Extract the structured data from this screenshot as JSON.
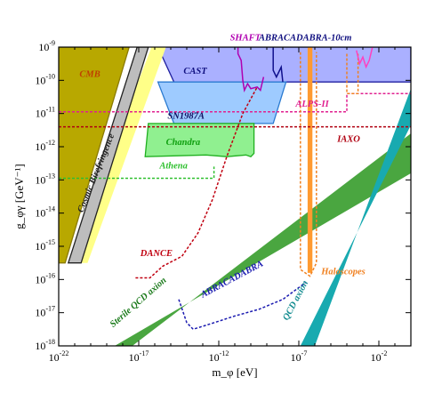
{
  "chart_data": {
    "type": "area",
    "title": "",
    "xlabel": "m_φ [eV]",
    "ylabel": "g_φγ [GeV⁻¹]",
    "x_scale": "log10",
    "y_scale": "log10",
    "xlim_log10": [
      -22,
      0
    ],
    "ylim_log10": [
      -18,
      -9
    ],
    "x_ticks": [
      {
        "exp": -22,
        "label": "10",
        "sup": "-22"
      },
      {
        "exp": -17,
        "label": "10",
        "sup": "-17"
      },
      {
        "exp": -12,
        "label": "10",
        "sup": "-12"
      },
      {
        "exp": -7,
        "label": "10",
        "sup": "-7"
      },
      {
        "exp": -2,
        "label": "10",
        "sup": "-2"
      }
    ],
    "y_ticks": [
      {
        "exp": -9,
        "label": "10",
        "sup": "-9"
      },
      {
        "exp": -10,
        "label": "10",
        "sup": "-10"
      },
      {
        "exp": -11,
        "label": "10",
        "sup": "-11"
      },
      {
        "exp": -12,
        "label": "10",
        "sup": "-12"
      },
      {
        "exp": -13,
        "label": "10",
        "sup": "-13"
      },
      {
        "exp": -14,
        "label": "10",
        "sup": "-14"
      },
      {
        "exp": -15,
        "label": "10",
        "sup": "-15"
      },
      {
        "exp": -16,
        "label": "10",
        "sup": "-16"
      },
      {
        "exp": -17,
        "label": "10",
        "sup": "-17"
      },
      {
        "exp": -18,
        "label": "10",
        "sup": "-18"
      }
    ],
    "regions": [
      {
        "name": "CAST",
        "fill": "#aab0ff",
        "stroke": "#2020a0",
        "points": [
          [
            -15.8,
            -9
          ],
          [
            0,
            -9
          ],
          [
            0,
            -10.05
          ],
          [
            -14.8,
            -10.05
          ]
        ]
      },
      {
        "name": "SN1987A",
        "fill": "#9ecbff",
        "stroke": "#2a7ad0",
        "points": [
          [
            -15.8,
            -10.05
          ],
          [
            -7.8,
            -10.05
          ],
          [
            -8.6,
            -11.3
          ],
          [
            -14.8,
            -11.3
          ]
        ]
      },
      {
        "name": "Chandra",
        "fill": "#90f090",
        "stroke": "#20b020",
        "points": [
          [
            -16.4,
            -11.3
          ],
          [
            -9.8,
            -11.3
          ],
          [
            -9.8,
            -12.2
          ],
          [
            -10.0,
            -12.3
          ],
          [
            -10.3,
            -12.25
          ],
          [
            -11.5,
            -12.3
          ],
          [
            -12.8,
            -12.25
          ],
          [
            -16.6,
            -12.3
          ]
        ]
      },
      {
        "name": "yellow-band",
        "fill": "#ffff88",
        "stroke": "none",
        "points": [
          [
            -15.3,
            -9
          ],
          [
            -16.2,
            -9
          ],
          [
            -21.4,
            -15.5
          ],
          [
            -20.2,
            -15.5
          ]
        ]
      },
      {
        "name": "Cosmic Birefringence",
        "fill": "#bdbdbd",
        "stroke": "#222222",
        "points": [
          [
            -16.4,
            -9
          ],
          [
            -17.1,
            -9
          ],
          [
            -21.4,
            -15.5
          ],
          [
            -20.6,
            -15.5
          ]
        ]
      },
      {
        "name": "CMB",
        "fill": "#b8a800",
        "stroke": "#8a7a00",
        "points": [
          [
            -22,
            -9
          ],
          [
            -17.6,
            -9
          ],
          [
            -21.6,
            -15.5
          ],
          [
            -22,
            -15.5
          ]
        ]
      },
      {
        "name": "Sterile QCD axion",
        "fill": "#4aa640",
        "stroke": "none",
        "points": [
          [
            -18.5,
            -18
          ],
          [
            -17.4,
            -18
          ],
          [
            0,
            -11.6
          ],
          [
            0,
            -12.8
          ]
        ]
      },
      {
        "name": "QCD axion",
        "fill": "#18aab0",
        "stroke": "none",
        "points": [
          [
            -6.9,
            -18
          ],
          [
            -6.0,
            -18
          ],
          [
            0,
            -10.25
          ],
          [
            0,
            -11.35
          ]
        ]
      },
      {
        "name": "Haloscopes-column",
        "fill": "#ff9a30",
        "stroke": "none",
        "points": [
          [
            -6.45,
            -9
          ],
          [
            -6.15,
            -9
          ],
          [
            -6.15,
            -15.8
          ],
          [
            -6.45,
            -15.8
          ]
        ]
      }
    ],
    "lines": [
      {
        "name": "SHAFT",
        "color": "#b000b0",
        "dash": "",
        "points": [
          [
            -10.8,
            -9
          ],
          [
            -10.8,
            -9.2
          ],
          [
            -10.6,
            -9.4
          ],
          [
            -10.5,
            -10.0
          ],
          [
            -10.4,
            -10.3
          ],
          [
            -10.2,
            -10.1
          ],
          [
            -10.0,
            -10.25
          ],
          [
            -9.6,
            -10.2
          ],
          [
            -9.4,
            -10.3
          ],
          [
            -9.2,
            -9.9
          ]
        ]
      },
      {
        "name": "ABRACADABRA-10cm",
        "color": "#10108c",
        "dash": "",
        "points": [
          [
            -8.6,
            -9
          ],
          [
            -8.6,
            -9.7
          ],
          [
            -8.4,
            -9.9
          ],
          [
            -8.1,
            -9.6
          ],
          [
            -8.0,
            -10.05
          ]
        ]
      },
      {
        "name": "IAXO",
        "color": "#b00010",
        "dash": "3,2",
        "points": [
          [
            -22,
            -11.4
          ],
          [
            0,
            -11.4
          ]
        ]
      },
      {
        "name": "ALPS-II",
        "color": "#e02090",
        "dash": "3,2",
        "points": [
          [
            -22,
            -10.95
          ],
          [
            -4.0,
            -10.95
          ],
          [
            -4.0,
            -10.4
          ],
          [
            0,
            -10.4
          ]
        ]
      },
      {
        "name": "Athena",
        "color": "#30c030",
        "dash": "3,2",
        "points": [
          [
            -22,
            -12.95
          ],
          [
            -12.3,
            -12.95
          ],
          [
            -12.3,
            -12.6
          ]
        ]
      },
      {
        "name": "DANCE",
        "color": "#c00010",
        "dash": "3,2",
        "points": [
          [
            -17.2,
            -15.95
          ],
          [
            -16.3,
            -15.95
          ],
          [
            -15.5,
            -15.6
          ],
          [
            -14.3,
            -15.3
          ],
          [
            -13.3,
            -14.6
          ],
          [
            -12.4,
            -13.6
          ],
          [
            -11.5,
            -12.3
          ],
          [
            -10.5,
            -11.0
          ],
          [
            -9.6,
            -10.2
          ]
        ]
      },
      {
        "name": "ABRACADABRA",
        "color": "#1a1ab0",
        "dash": "3,2",
        "points": [
          [
            -14.5,
            -16.6
          ],
          [
            -14.0,
            -17.3
          ],
          [
            -13.6,
            -17.5
          ],
          [
            -12.6,
            -17.35
          ],
          [
            -11.0,
            -17.1
          ],
          [
            -9.5,
            -16.9
          ],
          [
            -8.0,
            -16.6
          ],
          [
            -6.6,
            -16.1
          ]
        ]
      },
      {
        "name": "Haloscopes",
        "color": "#f08020",
        "dash": "3,2",
        "points": [
          [
            -6.9,
            -9.15
          ],
          [
            -6.9,
            -15.7
          ],
          [
            -6.3,
            -15.9
          ],
          [
            -5.9,
            -15.5
          ],
          [
            -5.9,
            -9.15
          ]
        ]
      },
      {
        "name": "Haloscopes-high",
        "color": "#f08020",
        "dash": "3,2",
        "points": [
          [
            -4.0,
            -9.2
          ],
          [
            -4.0,
            -10.4
          ],
          [
            -3.3,
            -10.4
          ],
          [
            -3.3,
            -9.2
          ]
        ]
      },
      {
        "name": "ALPS-magenta-high",
        "color": "#ff40c0",
        "dash": "",
        "points": [
          [
            -3.4,
            -9.1
          ],
          [
            -3.2,
            -9.5
          ],
          [
            -3.0,
            -9.3
          ],
          [
            -2.8,
            -9.6
          ],
          [
            -2.6,
            -9.4
          ],
          [
            -2.4,
            -9.0
          ]
        ]
      }
    ],
    "annotations": [
      {
        "text": "CMB",
        "x": -20.7,
        "y": -9.9,
        "color": "#c04000",
        "rotate": 0
      },
      {
        "text": "CAST",
        "x": -14.2,
        "y": -9.8,
        "color": "#101080",
        "rotate": 0
      },
      {
        "text": "SHAFT",
        "x": -11.3,
        "y": -8.8,
        "color": "#b000b0",
        "rotate": 0
      },
      {
        "text": "ABRACADABRA-10cm",
        "x": -9.5,
        "y": -8.8,
        "color": "#101080",
        "rotate": 0
      },
      {
        "text": "ALPS-II",
        "x": -7.2,
        "y": -10.8,
        "color": "#e02090",
        "rotate": 0
      },
      {
        "text": "SN1987A",
        "x": -15.2,
        "y": -11.15,
        "color": "#101060",
        "rotate": 0
      },
      {
        "text": "IAXO",
        "x": -4.6,
        "y": -11.85,
        "color": "#b00010",
        "rotate": 0
      },
      {
        "text": "Chandra",
        "x": -15.3,
        "y": -11.95,
        "color": "#10a010",
        "rotate": 0
      },
      {
        "text": "Athena",
        "x": -15.7,
        "y": -12.65,
        "color": "#30c030",
        "rotate": 0
      },
      {
        "text": "Cosmic Birefringence",
        "x": -20.5,
        "y": -14.0,
        "color": "#222222",
        "rotate": -68
      },
      {
        "text": "DANCE",
        "x": -16.9,
        "y": -15.3,
        "color": "#c00010",
        "rotate": 0
      },
      {
        "text": "Haloscopes",
        "x": -5.6,
        "y": -15.85,
        "color": "#f08020",
        "rotate": 0
      },
      {
        "text": "ABRACADABRA",
        "x": -13.0,
        "y": -16.55,
        "color": "#1a1ab0",
        "rotate": -28
      },
      {
        "text": "Sterile QCD axion",
        "x": -18.6,
        "y": -17.45,
        "color": "#1a7a1a",
        "rotate": -41
      },
      {
        "text": "QCD axion",
        "x": -7.7,
        "y": -17.25,
        "color": "#138c90",
        "rotate": -62
      }
    ]
  }
}
